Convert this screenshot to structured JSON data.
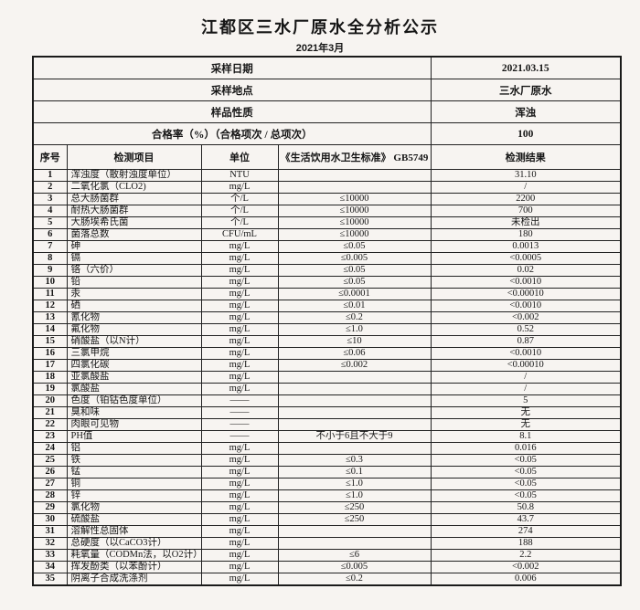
{
  "page": {
    "title": "江都区三水厂原水全分析公示",
    "subtitle": "2021年3月"
  },
  "info_rows": [
    {
      "label": "采样日期",
      "value": "2021.03.15"
    },
    {
      "label": "采样地点",
      "value": "三水厂原水"
    },
    {
      "label": "样品性质",
      "value": "浑浊"
    },
    {
      "label": "合格率（%）（合格项次 / 总项次）",
      "value": "100"
    }
  ],
  "table": {
    "columns": [
      "序号",
      "检测项目",
      "单位",
      "《生活饮用水卫生标准》 GB5749",
      "检测结果"
    ],
    "rows": [
      [
        "1",
        "浑浊度（散射浊度单位）",
        "NTU",
        "",
        "31.10"
      ],
      [
        "2",
        "二氧化氯（CLO2)",
        "mg/L",
        "",
        "/"
      ],
      [
        "3",
        "总大肠菌群",
        "个/L",
        "≤10000",
        "2200"
      ],
      [
        "4",
        "耐热大肠菌群",
        "个/L",
        "≤10000",
        "700"
      ],
      [
        "5",
        "大肠埃希氏菌",
        "个/L",
        "≤10000",
        "未检出"
      ],
      [
        "6",
        "菌落总数",
        "CFU/mL",
        "≤10000",
        "180"
      ],
      [
        "7",
        "砷",
        "mg/L",
        "≤0.05",
        "0.0013"
      ],
      [
        "8",
        "镉",
        "mg/L",
        "≤0.005",
        "<0.0005"
      ],
      [
        "9",
        "铬（六价）",
        "mg/L",
        "≤0.05",
        "0.02"
      ],
      [
        "10",
        "铅",
        "mg/L",
        "≤0.05",
        "<0.0010"
      ],
      [
        "11",
        "汞",
        "mg/L",
        "≤0.0001",
        "<0.00010"
      ],
      [
        "12",
        "硒",
        "mg/L",
        "≤0.01",
        "<0.0010"
      ],
      [
        "13",
        "氰化物",
        "mg/L",
        "≤0.2",
        "<0.002"
      ],
      [
        "14",
        "氟化物",
        "mg/L",
        "≤1.0",
        "0.52"
      ],
      [
        "15",
        "硝酸盐（以N计）",
        "mg/L",
        "≤10",
        "0.87"
      ],
      [
        "16",
        "三氯甲烷",
        "mg/L",
        "≤0.06",
        "<0.0010"
      ],
      [
        "17",
        "四氯化碳",
        "mg/L",
        "≤0.002",
        "<0.00010"
      ],
      [
        "18",
        "亚氯酸盐",
        "mg/L",
        "",
        "/"
      ],
      [
        "19",
        "氯酸盐",
        "mg/L",
        "",
        "/"
      ],
      [
        "20",
        "色度（铂钴色度单位）",
        "——",
        "",
        "5"
      ],
      [
        "21",
        "臭和味",
        "——",
        "",
        "无"
      ],
      [
        "22",
        "肉眼可见物",
        "——",
        "",
        "无"
      ],
      [
        "23",
        "PH值",
        "——",
        "不小于6且不大于9",
        "8.1"
      ],
      [
        "24",
        "铝",
        "mg/L",
        "",
        "0.016"
      ],
      [
        "25",
        "铁",
        "mg/L",
        "≤0.3",
        "<0.05"
      ],
      [
        "26",
        "锰",
        "mg/L",
        "≤0.1",
        "<0.05"
      ],
      [
        "27",
        "铜",
        "mg/L",
        "≤1.0",
        "<0.05"
      ],
      [
        "28",
        "锌",
        "mg/L",
        "≤1.0",
        "<0.05"
      ],
      [
        "29",
        "氯化物",
        "mg/L",
        "≤250",
        "50.8"
      ],
      [
        "30",
        "硫酸盐",
        "mg/L",
        "≤250",
        "43.7"
      ],
      [
        "31",
        "溶解性总固体",
        "mg/L",
        "",
        "274"
      ],
      [
        "32",
        "总硬度（以CaCO3计）",
        "mg/L",
        "",
        "188"
      ],
      [
        "33",
        "耗氧量（CODMn法，以O2计）",
        "mg/L",
        "≤6",
        "2.2"
      ],
      [
        "34",
        "挥发酚类（以苯酚计）",
        "mg/L",
        "≤0.005",
        "<0.002"
      ],
      [
        "35",
        "阴离子合成洗涤剂",
        "mg/L",
        "≤0.2",
        "0.006"
      ]
    ]
  }
}
